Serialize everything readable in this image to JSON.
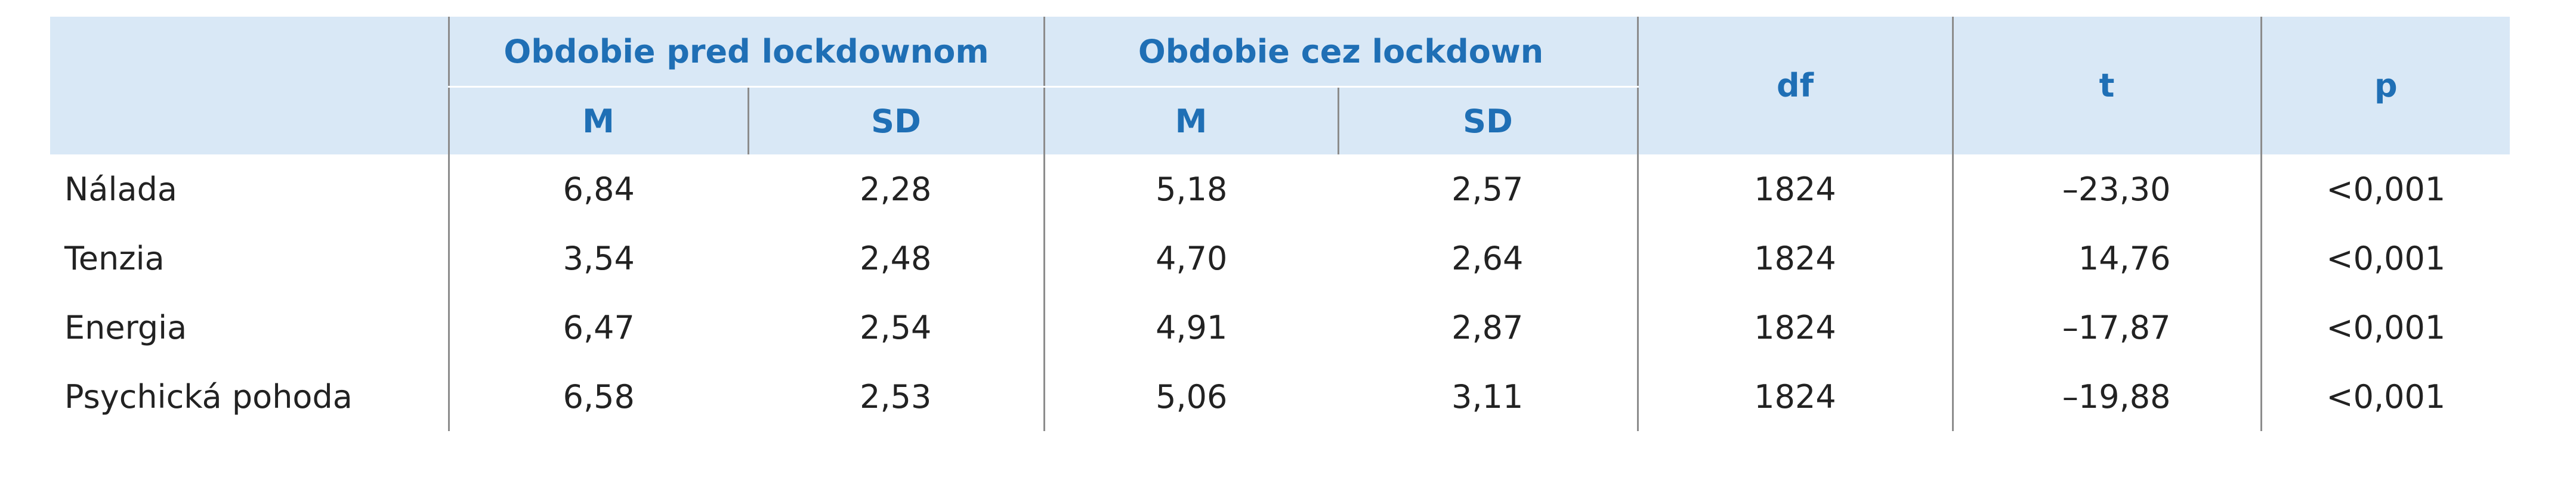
{
  "header": {
    "group1": "Obdobie pred lockdownom",
    "group2": "Obdobie cez lockdown",
    "subcols": [
      "M",
      "SD",
      "M",
      "SD"
    ],
    "df": "df",
    "t": "t",
    "p": "p"
  },
  "table": {
    "rows": [
      [
        "Nálada",
        "6,84",
        "2,28",
        "5,18",
        "2,57",
        "1824",
        "–23,30",
        "<0,001"
      ],
      [
        "Tenzia",
        "3,54",
        "2,48",
        "4,70",
        "2,64",
        "1824",
        "14,76",
        "<0,001"
      ],
      [
        "Energia",
        "6,47",
        "2,54",
        "4,91",
        "2,87",
        "1824",
        "–17,87",
        "<0,001"
      ],
      [
        "Psychická pohoda",
        "6,58",
        "2,53",
        "5,06",
        "3,11",
        "1824",
        "–19,88",
        "<0,001"
      ]
    ]
  }
}
